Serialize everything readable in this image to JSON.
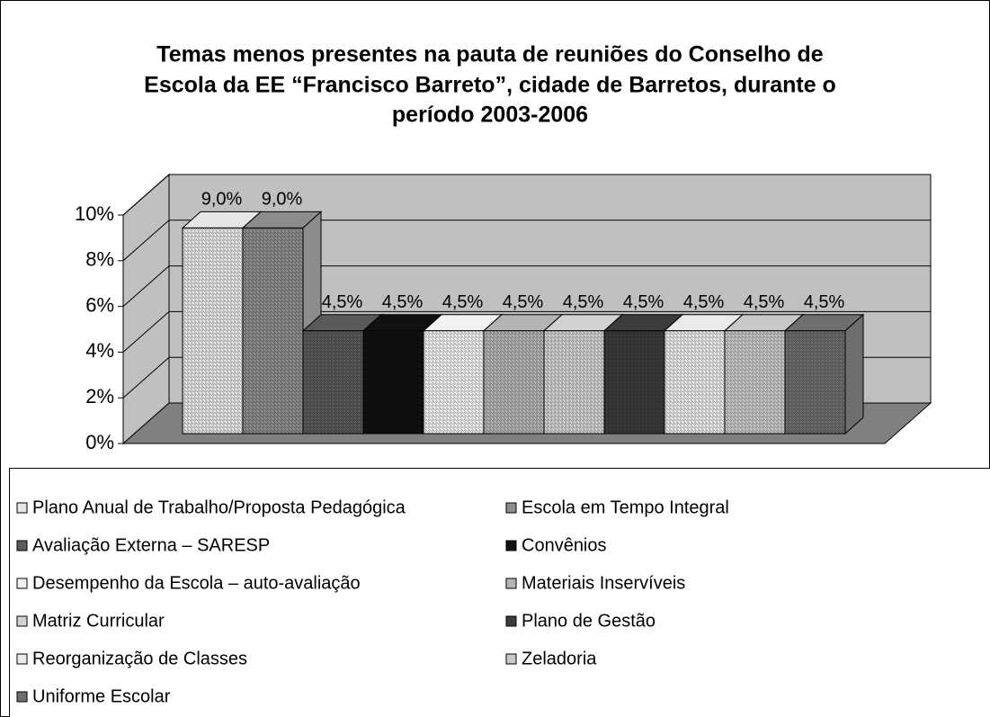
{
  "chart_data": {
    "type": "bar",
    "title": [
      "Temas menos presentes na pauta de reuniões do Conselho de",
      "Escola da EE “Francisco Barreto”, cidade de Barretos, durante o",
      "período 2003-2006"
    ],
    "series": [
      {
        "name": "Plano Anual de Trabalho/Proposta Pedagógica",
        "color": "#e6e6e6",
        "values": [
          9.0
        ],
        "value_labels": [
          "9,0%"
        ]
      },
      {
        "name": "Escola em Tempo Integral",
        "color": "#8c8c8c",
        "values": [
          9.0
        ],
        "value_labels": [
          "9,0%"
        ]
      },
      {
        "name": "Avaliação Externa – SARESP",
        "color": "#5a5a5a",
        "values": [
          4.5
        ],
        "value_labels": [
          "4,5%"
        ]
      },
      {
        "name": "Convênios",
        "color": "#111111",
        "values": [
          4.5
        ],
        "value_labels": [
          "4,5%"
        ]
      },
      {
        "name": "Desempenho da Escola – auto-avaliação",
        "color": "#f2f2f2",
        "values": [
          4.5
        ],
        "value_labels": [
          "4,5%"
        ]
      },
      {
        "name": "Materiais Inservíveis",
        "color": "#b4b4b4",
        "values": [
          4.5
        ],
        "value_labels": [
          "4,5%"
        ]
      },
      {
        "name": "Matriz Curricular",
        "color": "#d2d2d2",
        "values": [
          4.5
        ],
        "value_labels": [
          "4,5%"
        ]
      },
      {
        "name": "Plano de Gestão",
        "color": "#3c3c3c",
        "values": [
          4.5
        ],
        "value_labels": [
          "4,5%"
        ]
      },
      {
        "name": "Reorganização de Classes",
        "color": "#ebebeb",
        "values": [
          4.5
        ],
        "value_labels": [
          "4,5%"
        ]
      },
      {
        "name": "Zeladoria",
        "color": "#c8c8c8",
        "values": [
          4.5
        ],
        "value_labels": [
          "4,5%"
        ]
      },
      {
        "name": "Uniforme Escolar",
        "color": "#6e6e6e",
        "values": [
          4.5
        ],
        "value_labels": [
          "4,5%"
        ]
      }
    ],
    "ylim": [
      0,
      10
    ],
    "yticks": [
      {
        "value": 0,
        "label": "0%"
      },
      {
        "value": 2,
        "label": "2%"
      },
      {
        "value": 4,
        "label": "4%"
      },
      {
        "value": 6,
        "label": "6%"
      },
      {
        "value": 8,
        "label": "8%"
      },
      {
        "value": 10,
        "label": "10%"
      }
    ],
    "grid": true,
    "legend": "bottom"
  }
}
